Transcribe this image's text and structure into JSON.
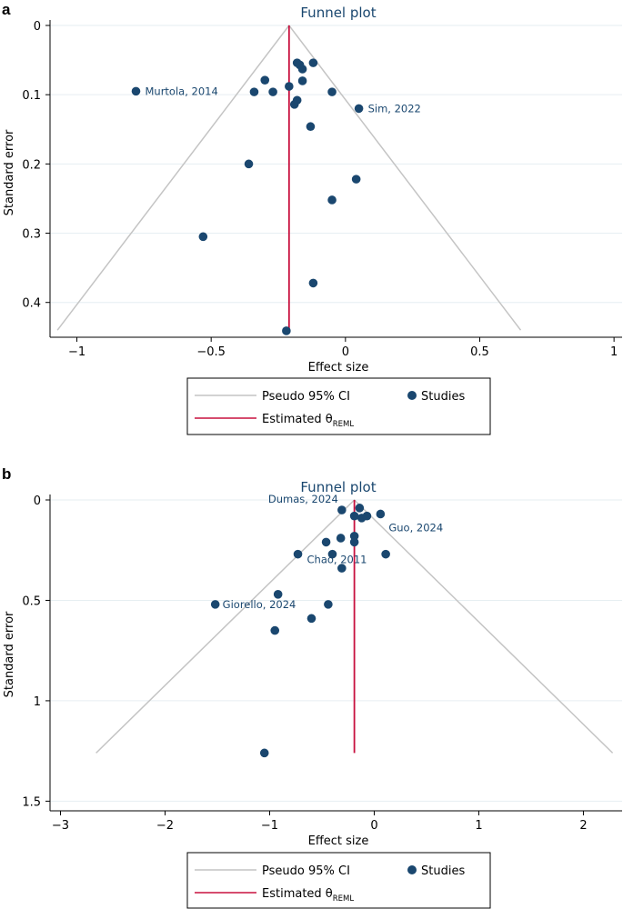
{
  "colors": {
    "points": "#1a476f",
    "estimate": "#c8103e",
    "funnel": "#c4c4c4",
    "grid": "#e6eef2",
    "title": "#1a476f"
  },
  "legend": {
    "ci_label": "Pseudo 95% CI",
    "studies_label": "Studies",
    "estimate_label": "Estimated θ",
    "estimate_sub": "REML"
  },
  "chart_data": [
    {
      "panel": "a",
      "type": "scatter",
      "title": "Funnel plot",
      "xlabel": "Effect size",
      "ylabel": "Standard error",
      "xlim": [
        -1.1,
        1.03
      ],
      "ylim": [
        0,
        0.445
      ],
      "y_inverted": true,
      "xticks": [
        -1,
        -0.5,
        0,
        0.5,
        1
      ],
      "xtick_labels": [
        "−1",
        "−0.5",
        "0",
        "0.5",
        "1"
      ],
      "yticks": [
        0,
        0.1,
        0.2,
        0.3,
        0.4
      ],
      "ytick_labels": [
        "0",
        "0.1",
        "0.2",
        "0.3",
        "0.4"
      ],
      "theta": -0.21,
      "funnel_se_max": 0.44,
      "points": [
        {
          "x": -0.78,
          "y": 0.095
        },
        {
          "x": -0.34,
          "y": 0.096
        },
        {
          "x": -0.3,
          "y": 0.079
        },
        {
          "x": -0.27,
          "y": 0.096
        },
        {
          "x": -0.21,
          "y": 0.088
        },
        {
          "x": -0.18,
          "y": 0.054
        },
        {
          "x": -0.17,
          "y": 0.057
        },
        {
          "x": -0.16,
          "y": 0.063
        },
        {
          "x": -0.12,
          "y": 0.054
        },
        {
          "x": -0.16,
          "y": 0.08
        },
        {
          "x": -0.18,
          "y": 0.108
        },
        {
          "x": -0.19,
          "y": 0.114
        },
        {
          "x": -0.05,
          "y": 0.096
        },
        {
          "x": 0.05,
          "y": 0.12
        },
        {
          "x": -0.13,
          "y": 0.146
        },
        {
          "x": -0.36,
          "y": 0.2
        },
        {
          "x": 0.04,
          "y": 0.222
        },
        {
          "x": -0.05,
          "y": 0.252
        },
        {
          "x": -0.53,
          "y": 0.305
        },
        {
          "x": -0.12,
          "y": 0.372
        },
        {
          "x": -0.22,
          "y": 0.441
        }
      ],
      "annotations": [
        {
          "text": "Murtola, 2014",
          "x": -0.78,
          "y": 0.095
        },
        {
          "text": "Sim, 2022",
          "x": 0.05,
          "y": 0.12
        }
      ]
    },
    {
      "panel": "b",
      "type": "scatter",
      "title": "Funnel plot",
      "xlabel": "Effect size",
      "ylabel": "Standard error",
      "xlim": [
        -3.1,
        2.37
      ],
      "ylim": [
        0,
        1.53
      ],
      "y_inverted": true,
      "xticks": [
        -3,
        -2,
        -1,
        0,
        1,
        2
      ],
      "xtick_labels": [
        "−3",
        "−2",
        "−1",
        "0",
        "1",
        "2"
      ],
      "yticks": [
        0,
        0.5,
        1,
        1.5
      ],
      "ytick_labels": [
        "0",
        "0.5",
        "1",
        "1.5"
      ],
      "theta": -0.19,
      "funnel_se_max": 1.26,
      "points": [
        {
          "x": -0.31,
          "y": 0.05
        },
        {
          "x": -0.14,
          "y": 0.04
        },
        {
          "x": -0.19,
          "y": 0.08
        },
        {
          "x": -0.12,
          "y": 0.09
        },
        {
          "x": -0.07,
          "y": 0.08
        },
        {
          "x": 0.06,
          "y": 0.07
        },
        {
          "x": -0.19,
          "y": 0.18
        },
        {
          "x": -0.19,
          "y": 0.21
        },
        {
          "x": -0.32,
          "y": 0.19
        },
        {
          "x": -0.46,
          "y": 0.21
        },
        {
          "x": -0.73,
          "y": 0.27
        },
        {
          "x": -0.4,
          "y": 0.27
        },
        {
          "x": 0.11,
          "y": 0.27
        },
        {
          "x": -0.31,
          "y": 0.34
        },
        {
          "x": -1.52,
          "y": 0.52
        },
        {
          "x": -0.92,
          "y": 0.47
        },
        {
          "x": -0.44,
          "y": 0.52
        },
        {
          "x": -0.6,
          "y": 0.59
        },
        {
          "x": -0.95,
          "y": 0.65
        },
        {
          "x": -1.05,
          "y": 1.26
        }
      ],
      "annotations": [
        {
          "text": "Dumas, 2024",
          "x": -0.31,
          "y": 0.05
        },
        {
          "text": "Guo, 2024",
          "x": 0.06,
          "y": 0.07
        },
        {
          "text": "Chao, 2011",
          "x": -0.73,
          "y": 0.27
        },
        {
          "text": "Giorello, 2024",
          "x": -1.52,
          "y": 0.52
        }
      ]
    }
  ]
}
